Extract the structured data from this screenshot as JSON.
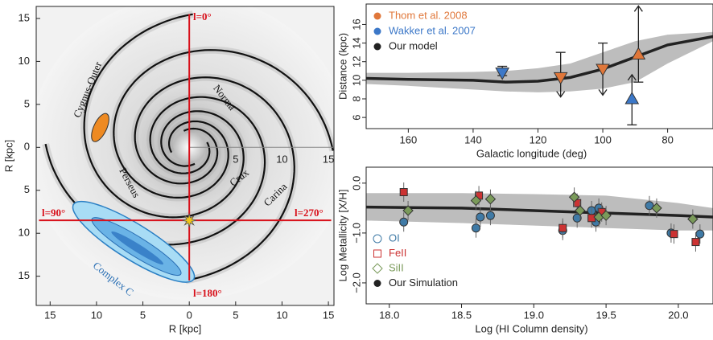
{
  "chart_data": [
    {
      "type": "map",
      "xlabel": "R [kpc]",
      "ylabel": "R [kpc]",
      "xlim": [
        -16.5,
        15.6
      ],
      "ylim": [
        -18.4,
        16.4
      ],
      "xticks": [
        {
          "value": -15,
          "label": "15"
        },
        {
          "value": -10,
          "label": "10"
        },
        {
          "value": -5,
          "label": "5"
        },
        0,
        5,
        10,
        15
      ],
      "yticks": [
        15,
        10,
        5,
        0,
        {
          "value": -5,
          "label": "5"
        },
        {
          "value": -10,
          "label": "10"
        },
        {
          "value": -15,
          "label": "15"
        }
      ],
      "radial_ticks": [
        5,
        10,
        15
      ],
      "annotations": [
        "l=0°",
        "l=90°",
        "l=270°",
        "l=180°",
        "Norma",
        "Perseus",
        "Crux",
        "Carina",
        "Cygnus-Outer",
        "Complex C"
      ]
    },
    {
      "type": "line",
      "xlabel": "Galactic longitude (deg)",
      "ylabel": "Distance (kpc)",
      "xlim": [
        173,
        66
      ],
      "ylim": [
        4.8,
        18.2
      ],
      "xticks": [
        160,
        140,
        120,
        100,
        80
      ],
      "yticks": [
        6,
        8,
        10,
        12,
        14,
        16
      ],
      "legend": "upper left",
      "series": [
        {
          "name": "Thom et al. 2008",
          "color": "#e0773a",
          "x": [
            113,
            100,
            89
          ],
          "values": [
            10.3,
            11.2,
            12.8
          ],
          "low": [
            8.2,
            8.4,
            9.8
          ],
          "high": [
            13.0,
            14.0,
            18.0
          ],
          "markers": [
            "down",
            "down",
            "up"
          ],
          "arrows": [
            "low",
            "low",
            "high"
          ]
        },
        {
          "name": "Wakker et al. 2007",
          "color": "#3c78c8",
          "x": [
            131,
            91
          ],
          "values": [
            10.8,
            8.0
          ],
          "low": [
            10.5,
            5.2
          ],
          "high": [
            11.5,
            10.6
          ],
          "markers": [
            "down",
            "up"
          ],
          "arrows": [
            null,
            "high"
          ]
        },
        {
          "name": "Our model",
          "color": "#222222",
          "x": [
            173,
            160,
            140,
            130,
            120,
            110,
            100,
            90,
            80,
            66
          ],
          "values": [
            10.2,
            10.1,
            10.0,
            9.8,
            9.9,
            10.3,
            11.2,
            12.5,
            13.8,
            14.7
          ],
          "band_low": [
            9.6,
            9.4,
            9.0,
            8.8,
            8.7,
            8.8,
            9.1,
            9.8,
            11.8,
            14.2
          ],
          "band_high": [
            10.8,
            10.8,
            10.9,
            11.0,
            11.3,
            11.8,
            13.0,
            14.2,
            14.9,
            15.2
          ]
        }
      ]
    },
    {
      "type": "scatter",
      "xlabel": "Log (HI Column density)",
      "ylabel": "Log Metallicity [X/H]",
      "xlim": [
        17.84,
        20.24
      ],
      "ylim": [
        -2.42,
        0.32
      ],
      "xticks": [
        {
          "value": 18,
          "label": "18.0"
        },
        {
          "value": 18.5,
          "label": "18.5"
        },
        {
          "value": 19,
          "label": "19.0"
        },
        {
          "value": 19.5,
          "label": "19.5"
        },
        {
          "value": 20,
          "label": "20.0"
        }
      ],
      "yticks": [
        {
          "value": 0,
          "label": "0.0"
        },
        {
          "value": -1,
          "label": "−1.0"
        },
        {
          "value": -2,
          "label": "−2.0"
        }
      ],
      "legend": "lower left",
      "series": [
        {
          "name": "OI",
          "color": "#3f7aa6",
          "marker": "circle",
          "x": [
            18.1,
            18.6,
            18.63,
            18.7,
            19.2,
            19.3,
            19.4,
            19.43,
            19.45,
            19.8,
            19.95,
            20.15
          ],
          "values": [
            -0.78,
            -0.9,
            -0.68,
            -0.65,
            -0.95,
            -0.7,
            -0.55,
            -0.78,
            -0.5,
            -0.45,
            -1.0,
            -1.02
          ]
        },
        {
          "name": "FeII",
          "color": "#cc3333",
          "marker": "square",
          "x": [
            18.1,
            18.62,
            19.2,
            19.3,
            19.4,
            19.47,
            19.97,
            20.12
          ],
          "values": [
            -0.18,
            -0.25,
            -0.9,
            -0.4,
            -0.7,
            -0.58,
            -1.02,
            -1.18
          ]
        },
        {
          "name": "SiII",
          "color": "#7a9a5a",
          "marker": "diamond",
          "x": [
            18.13,
            18.6,
            18.7,
            19.28,
            19.32,
            19.45,
            19.5,
            19.85,
            20.1
          ],
          "values": [
            -0.55,
            -0.35,
            -0.32,
            -0.28,
            -0.55,
            -0.68,
            -0.65,
            -0.5,
            -0.72
          ]
        },
        {
          "name": "Our Simulation",
          "color": "#222222",
          "marker": "line",
          "x": [
            17.84,
            18.5,
            19.0,
            19.5,
            20.0,
            20.24
          ],
          "values": [
            -0.48,
            -0.5,
            -0.55,
            -0.6,
            -0.65,
            -0.68
          ],
          "band_low": [
            -0.75,
            -0.8,
            -0.85,
            -0.9,
            -0.95,
            -0.95
          ],
          "band_high": [
            -0.2,
            -0.2,
            -0.22,
            -0.25,
            -0.4,
            -0.5
          ]
        }
      ]
    }
  ]
}
